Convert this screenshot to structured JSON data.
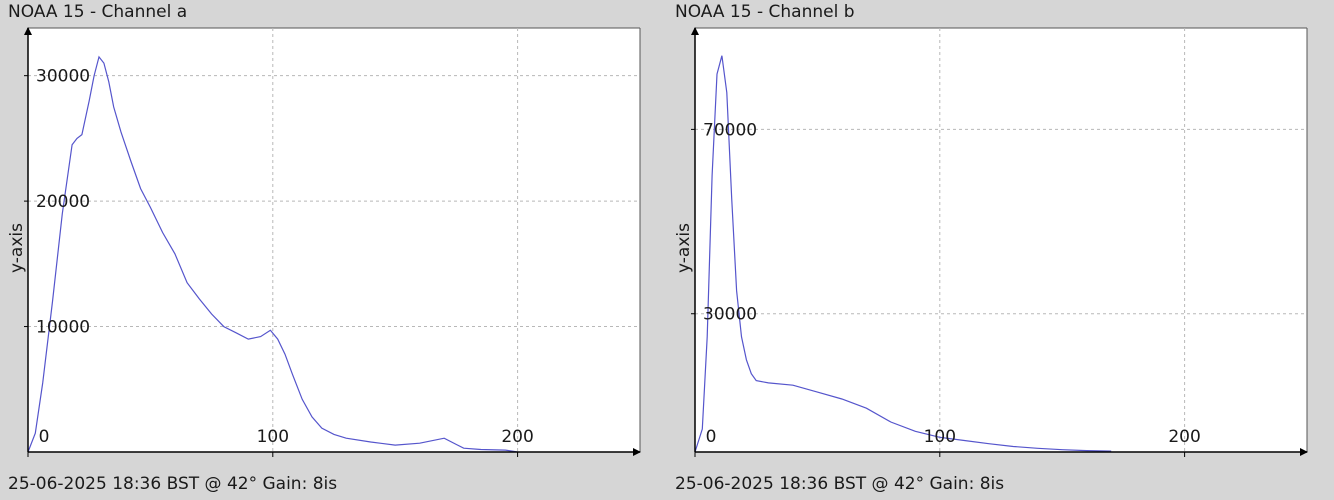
{
  "chart_data": [
    {
      "type": "line",
      "title": "NOAA 15 - Channel a",
      "footer": "25-06-2025 18:36 BST @ 42° Gain: 8is",
      "xlabel": "",
      "ylabel": "y-axis",
      "xlim": [
        0,
        250
      ],
      "ylim": [
        0,
        33800
      ],
      "x_ticks": [
        0,
        100,
        200
      ],
      "y_ticks": [
        10000,
        20000,
        30000
      ],
      "grid": true,
      "line_color": "#5555cc",
      "series": [
        {
          "x": [
            0,
            3,
            6,
            10,
            14,
            18,
            20,
            22,
            25,
            27,
            29,
            31,
            33,
            35,
            38,
            42,
            46,
            50,
            55,
            60,
            65,
            70,
            75,
            80,
            85,
            90,
            95,
            99,
            102,
            105,
            108,
            112,
            116,
            120,
            125,
            130,
            140,
            150,
            160,
            170,
            175,
            178,
            185,
            195,
            200
          ],
          "y": [
            0,
            1500,
            5500,
            12000,
            19000,
            24500,
            25000,
            25300,
            28000,
            30000,
            31500,
            31000,
            29500,
            27500,
            25500,
            23200,
            21000,
            19500,
            17500,
            15800,
            13500,
            12200,
            11000,
            10000,
            9500,
            9000,
            9200,
            9700,
            9000,
            7800,
            6200,
            4200,
            2800,
            1900,
            1400,
            1100,
            800,
            550,
            700,
            1100,
            600,
            300,
            200,
            150,
            0
          ]
        }
      ]
    },
    {
      "type": "line",
      "title": "NOAA 15 - Channel b",
      "footer": "25-06-2025 18:36 BST @ 42° Gain: 8is",
      "xlabel": "",
      "ylabel": "y-axis",
      "xlim": [
        0,
        250
      ],
      "ylim": [
        0,
        92000
      ],
      "x_ticks": [
        0,
        100,
        200
      ],
      "y_ticks": [
        30000,
        70000
      ],
      "grid": true,
      "line_color": "#5555cc",
      "series": [
        {
          "x": [
            0,
            3,
            5,
            7,
            9,
            11,
            13,
            15,
            17,
            19,
            21,
            23,
            25,
            30,
            40,
            50,
            60,
            70,
            80,
            90,
            100,
            110,
            120,
            130,
            140,
            150,
            160,
            170
          ],
          "y": [
            0,
            5000,
            25000,
            60000,
            82000,
            86000,
            78000,
            55000,
            35000,
            25000,
            20000,
            17000,
            15500,
            15000,
            14500,
            13000,
            11500,
            9500,
            6500,
            4500,
            3200,
            2500,
            1800,
            1200,
            800,
            500,
            300,
            200
          ]
        }
      ]
    }
  ]
}
